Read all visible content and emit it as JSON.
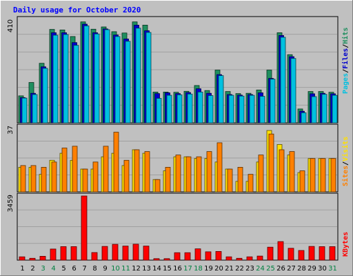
{
  "title": "Daily usage for October 2020",
  "colors": {
    "background": "#c0c0c0",
    "plot_bg": "#c0c0c0",
    "grid": "#a0a0a0",
    "title_text": "#0000ff",
    "hits": "#1f8f5f",
    "files": "#0000cc",
    "pages": "#00c0e0",
    "visits": "#ffe000",
    "sites": "#ff8000",
    "kbytes": "#ff0000",
    "tick_weekday": "#000000",
    "tick_weekend": "#008040"
  },
  "chart_data": [
    {
      "type": "bar",
      "panel": "hits-files-pages",
      "axis_max_label": "410",
      "ylim": [
        0,
        410
      ],
      "grid": true,
      "legend": [
        "Pages",
        "/",
        "Files",
        "/",
        "Hits"
      ],
      "categories": [
        "1",
        "2",
        "3",
        "4",
        "5",
        "6",
        "7",
        "8",
        "9",
        "10",
        "11",
        "12",
        "13",
        "14",
        "15",
        "16",
        "17",
        "18",
        "19",
        "20",
        "21",
        "22",
        "23",
        "24",
        "25",
        "26",
        "27",
        "28",
        "29",
        "30",
        "31"
      ],
      "series": [
        {
          "name": "Hits",
          "values": [
            107,
            160,
            236,
            370,
            368,
            342,
            400,
            371,
            380,
            361,
            356,
            400,
            387,
            122,
            122,
            121,
            125,
            148,
            128,
            209,
            124,
            116,
            117,
            130,
            209,
            357,
            270,
            55,
            124,
            124,
            121
          ]
        },
        {
          "name": "Files",
          "values": [
            100,
            117,
            222,
            357,
            357,
            318,
            391,
            357,
            372,
            348,
            332,
            387,
            365,
            116,
            119,
            116,
            120,
            135,
            117,
            191,
            112,
            110,
            112,
            119,
            176,
            346,
            262,
            46,
            115,
            117,
            115
          ]
        },
        {
          "name": "Pages",
          "values": [
            98,
            112,
            216,
            347,
            350,
            307,
            384,
            352,
            369,
            342,
            323,
            375,
            358,
            97,
            109,
            111,
            114,
            122,
            108,
            187,
            109,
            106,
            109,
            105,
            173,
            339,
            255,
            40,
            104,
            113,
            109
          ]
        }
      ]
    },
    {
      "type": "bar",
      "panel": "visits-sites",
      "axis_max_label": "37",
      "ylim": [
        0,
        37
      ],
      "grid": true,
      "legend": [
        "Sites",
        "/",
        "Visits"
      ],
      "categories": [
        "1",
        "2",
        "3",
        "4",
        "5",
        "6",
        "7",
        "8",
        "9",
        "10",
        "11",
        "12",
        "13",
        "14",
        "15",
        "16",
        "17",
        "18",
        "19",
        "20",
        "21",
        "22",
        "23",
        "24",
        "25",
        "26",
        "27",
        "28",
        "29",
        "30",
        "31"
      ],
      "series": [
        {
          "name": "Visits",
          "values": [
            14,
            14,
            10,
            18,
            22,
            18,
            13,
            13,
            20,
            22,
            15,
            24,
            22,
            7,
            12,
            20,
            20,
            19,
            19,
            17,
            13,
            6,
            6,
            17,
            35,
            27,
            21,
            11,
            19,
            19,
            19
          ]
        },
        {
          "name": "Sites",
          "values": [
            15,
            15,
            14,
            17,
            25,
            26,
            13,
            17,
            26,
            34,
            18,
            24,
            23,
            7,
            14,
            21,
            20,
            20,
            23,
            28,
            13,
            14,
            10,
            21,
            33,
            24,
            23,
            12,
            19,
            19,
            19
          ]
        }
      ]
    },
    {
      "type": "bar",
      "panel": "kbytes",
      "axis_max_label": "3459",
      "ylim": [
        0,
        3459
      ],
      "grid": true,
      "legend": [
        "KBytes"
      ],
      "categories": [
        "1",
        "2",
        "3",
        "4",
        "5",
        "6",
        "7",
        "8",
        "9",
        "10",
        "11",
        "12",
        "13",
        "14",
        "15",
        "16",
        "17",
        "18",
        "19",
        "20",
        "21",
        "22",
        "23",
        "24",
        "25",
        "26",
        "27",
        "28",
        "29",
        "30",
        "31"
      ],
      "series": [
        {
          "name": "KBytes",
          "values": [
            180,
            100,
            210,
            600,
            730,
            730,
            3459,
            410,
            740,
            850,
            760,
            860,
            760,
            80,
            80,
            400,
            400,
            610,
            450,
            470,
            180,
            100,
            180,
            220,
            700,
            1000,
            640,
            520,
            740,
            730,
            730
          ]
        }
      ]
    }
  ],
  "weekend_days": [
    "3",
    "4",
    "10",
    "11",
    "17",
    "18",
    "24",
    "25",
    "31"
  ]
}
